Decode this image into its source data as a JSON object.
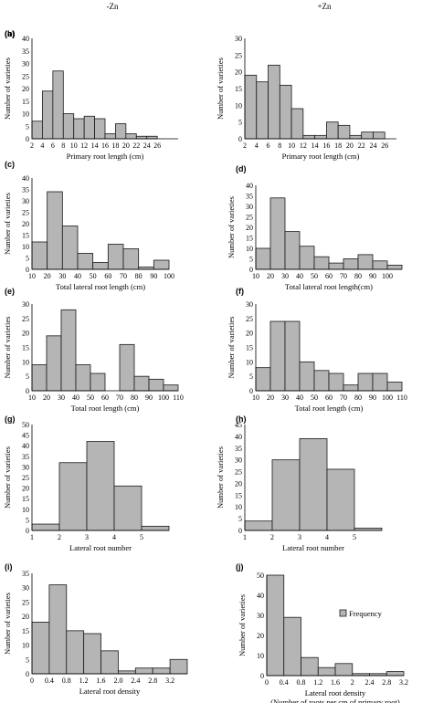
{
  "headers": {
    "left": "-Zn",
    "right": "+Zn"
  },
  "chart_data": [
    {
      "id": "a",
      "type": "bar",
      "panel_label": "(a)",
      "ylabel": "Number of varieties",
      "xlabel": "Primary root length  (cm)",
      "ylim": [
        0,
        40
      ],
      "yticks": [
        "0",
        "5",
        "10",
        "15",
        "20",
        "25",
        "30",
        "35",
        "40"
      ],
      "categories": [
        "1",
        "2",
        "3",
        "4",
        "5",
        "6",
        "7",
        "8",
        "9",
        "10",
        "11",
        "12",
        "13",
        "14"
      ],
      "values": [
        7,
        19,
        27,
        10,
        8,
        9,
        8,
        2,
        6,
        2,
        1,
        1,
        0,
        0
      ],
      "tick_labels": [
        "2",
        "4",
        "6",
        "8",
        "10",
        "12",
        "14",
        "16",
        "18",
        "20",
        "22",
        "24",
        "26"
      ],
      "tick_positions": [
        0,
        1,
        2,
        3,
        4,
        5,
        6,
        7,
        8,
        9,
        10,
        11,
        12
      ]
    },
    {
      "id": "b",
      "type": "bar",
      "panel_label": "(b)",
      "ylabel": "Number of varieties",
      "xlabel": "Primary root length  (cm)",
      "ylim": [
        0,
        30
      ],
      "yticks": [
        "0",
        "5",
        "10",
        "15",
        "20",
        "25",
        "30"
      ],
      "categories": [
        "1",
        "2",
        "3",
        "4",
        "5",
        "6",
        "7",
        "8",
        "9",
        "10",
        "11",
        "12",
        "13"
      ],
      "values": [
        19,
        17,
        22,
        16,
        9,
        1,
        1,
        5,
        4,
        1,
        2,
        2,
        0
      ],
      "tick_labels": [
        "2",
        "4",
        "6",
        "8",
        "10",
        "12",
        "14",
        "16",
        "18",
        "20",
        "22",
        "24",
        "26"
      ],
      "tick_positions": [
        0,
        1,
        2,
        3,
        4,
        5,
        6,
        7,
        8,
        9,
        10,
        11,
        12
      ]
    },
    {
      "id": "c",
      "type": "bar",
      "panel_label": "(c)",
      "ylabel": "Number of varieties",
      "xlabel": "Total lateral root length  (cm)",
      "ylim": [
        0,
        40
      ],
      "yticks": [
        "0",
        "5",
        "10",
        "15",
        "20",
        "25",
        "30",
        "35",
        "40"
      ],
      "categories": [
        "1",
        "2",
        "3",
        "4",
        "5",
        "6",
        "7",
        "8",
        "9"
      ],
      "values": [
        12,
        34,
        19,
        7,
        3,
        11,
        9,
        1,
        4
      ],
      "tick_labels": [
        "10",
        "20",
        "30",
        "40",
        "50",
        "60",
        "70",
        "80",
        "90",
        "100"
      ],
      "tick_positions": [
        0,
        1,
        2,
        3,
        4,
        5,
        6,
        7,
        8,
        9
      ]
    },
    {
      "id": "d",
      "type": "bar",
      "panel_label": "(d)",
      "ylabel": "Number of varieties",
      "xlabel": "Total lateral root length(cm)",
      "ylim": [
        0,
        40
      ],
      "yticks": [
        "0",
        "5",
        "10",
        "15",
        "20",
        "25",
        "30",
        "35",
        "40"
      ],
      "categories": [
        "1",
        "2",
        "3",
        "4",
        "5",
        "6",
        "7",
        "8",
        "9",
        "10"
      ],
      "values": [
        10,
        34,
        18,
        11,
        6,
        3,
        5,
        7,
        4,
        2
      ],
      "tick_labels": [
        "10",
        "20",
        "30",
        "40",
        "50",
        "60",
        "70",
        "80",
        "90",
        "100"
      ],
      "tick_positions": [
        0,
        1,
        2,
        3,
        4,
        5,
        6,
        7,
        8,
        9
      ]
    },
    {
      "id": "e",
      "type": "bar",
      "panel_label": "(e)",
      "ylabel": "Number of varieties",
      "xlabel": "Total root length  (cm)",
      "ylim": [
        0,
        30
      ],
      "yticks": [
        "0",
        "5",
        "10",
        "15",
        "20",
        "25",
        "30"
      ],
      "categories": [
        "1",
        "2",
        "3",
        "4",
        "5",
        "6",
        "7",
        "8",
        "9",
        "10"
      ],
      "values": [
        9,
        19,
        28,
        9,
        6,
        0,
        16,
        5,
        4,
        2
      ],
      "tick_labels": [
        "10",
        "20",
        "30",
        "40",
        "50",
        "60",
        "70",
        "80",
        "90",
        "100",
        "110"
      ],
      "tick_positions": [
        0,
        1,
        2,
        3,
        4,
        5,
        6,
        7,
        8,
        9,
        10
      ]
    },
    {
      "id": "f",
      "type": "bar",
      "panel_label": "(f)",
      "ylabel": "Number of varieties",
      "xlabel": "Total root length  (cm)",
      "ylim": [
        0,
        30
      ],
      "yticks": [
        "0",
        "5",
        "10",
        "15",
        "20",
        "25",
        "30"
      ],
      "categories": [
        "1",
        "2",
        "3",
        "4",
        "5",
        "6",
        "7",
        "8",
        "9",
        "10"
      ],
      "values": [
        8,
        24,
        24,
        10,
        7,
        6,
        2,
        6,
        6,
        3
      ],
      "tick_labels": [
        "10",
        "20",
        "30",
        "40",
        "50",
        "60",
        "70",
        "80",
        "90",
        "100",
        "110"
      ],
      "tick_positions": [
        0,
        1,
        2,
        3,
        4,
        5,
        6,
        7,
        8,
        9,
        10
      ]
    },
    {
      "id": "g",
      "type": "bar",
      "panel_label": "(g)",
      "ylabel": "Number of varieties",
      "xlabel": "Lateral root number",
      "ylim": [
        0,
        50
      ],
      "yticks": [
        "0",
        "5",
        "10",
        "15",
        "20",
        "25",
        "30",
        "35",
        "40",
        "45",
        "50"
      ],
      "categories": [
        "1",
        "2",
        "3",
        "4",
        "5"
      ],
      "values": [
        3,
        32,
        42,
        21,
        2
      ],
      "tick_labels": [
        "1",
        "2",
        "3",
        "4",
        "5"
      ],
      "tick_positions": [
        0,
        1,
        2,
        3,
        4
      ]
    },
    {
      "id": "h",
      "type": "bar",
      "panel_label": "(h)",
      "ylabel": "Number of varieties",
      "xlabel": "Lateral root number",
      "ylim": [
        0,
        45
      ],
      "yticks": [
        "0",
        "5",
        "10",
        "15",
        "20",
        "25",
        "30",
        "35",
        "40",
        "45"
      ],
      "categories": [
        "1",
        "2",
        "3",
        "4",
        "5"
      ],
      "values": [
        4,
        30,
        39,
        26,
        1
      ],
      "tick_labels": [
        "1",
        "2",
        "3",
        "4",
        "5"
      ],
      "tick_positions": [
        0,
        1,
        2,
        3,
        4
      ]
    },
    {
      "id": "i",
      "type": "bar",
      "panel_label": "(i)",
      "ylabel": "Number of varieties",
      "xlabel": "Lateral root density",
      "ylim": [
        0,
        35
      ],
      "yticks": [
        "0",
        "5",
        "10",
        "15",
        "20",
        "25",
        "30",
        "35"
      ],
      "categories": [
        "1",
        "2",
        "3",
        "4",
        "5",
        "6",
        "7",
        "8",
        "9"
      ],
      "values": [
        18,
        31,
        15,
        14,
        8,
        1,
        2,
        2,
        5
      ],
      "tick_labels": [
        "0",
        "0.4",
        "0.8",
        "1.2",
        "1.6",
        "2.0",
        "2.4",
        "2.8",
        "3.2"
      ],
      "tick_positions": [
        0,
        1,
        2,
        3,
        4,
        5,
        6,
        7,
        8
      ]
    },
    {
      "id": "j",
      "type": "bar",
      "panel_label": "(j)",
      "ylabel": "Number of varieties",
      "xlabel": "Lateral root density",
      "xlabel2": "(Number of roots per cm of primary  root)",
      "legend": "Frequency",
      "legend_position": "right",
      "ylim": [
        0,
        50
      ],
      "yticks": [
        "0",
        "10",
        "20",
        "30",
        "40",
        "50"
      ],
      "categories": [
        "1",
        "2",
        "3",
        "4",
        "5",
        "6",
        "7",
        "8"
      ],
      "values": [
        50,
        29,
        9,
        4,
        6,
        1,
        1,
        2
      ],
      "tick_labels": [
        "0",
        "0.4",
        "0.8",
        "1.2",
        "1.6",
        "2",
        "2.4",
        "2.8",
        "3.2"
      ],
      "tick_positions": [
        0,
        1,
        2,
        3,
        4,
        5,
        6,
        7,
        8
      ]
    }
  ]
}
